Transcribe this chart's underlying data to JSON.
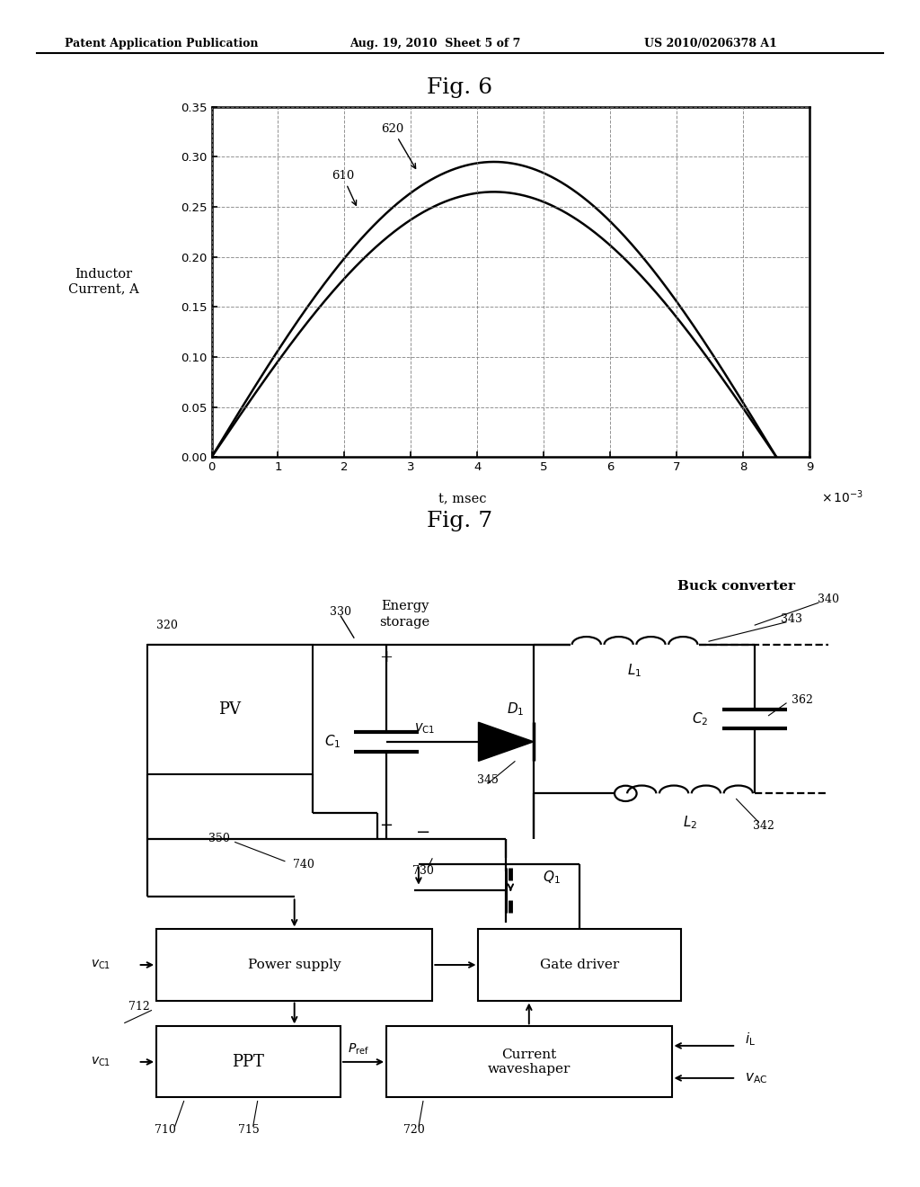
{
  "page_title_left": "Patent Application Publication",
  "page_title_center": "Aug. 19, 2010  Sheet 5 of 7",
  "page_title_right": "US 2010/0206378 A1",
  "fig6_title": "Fig. 6",
  "fig6_ylabel_line1": "Inductor",
  "fig6_ylabel_line2": "Current, A",
  "fig6_xlabel": "t, msec",
  "fig6_yticks": [
    0,
    0.05,
    0.1,
    0.15,
    0.2,
    0.25,
    0.3,
    0.35
  ],
  "fig6_xticks": [
    0,
    1,
    2,
    3,
    4,
    5,
    6,
    7,
    8,
    9
  ],
  "fig6_ylim": [
    0,
    0.35
  ],
  "fig6_xlim": [
    0,
    9
  ],
  "fig7_title": "Fig. 7",
  "background_color": "#ffffff"
}
